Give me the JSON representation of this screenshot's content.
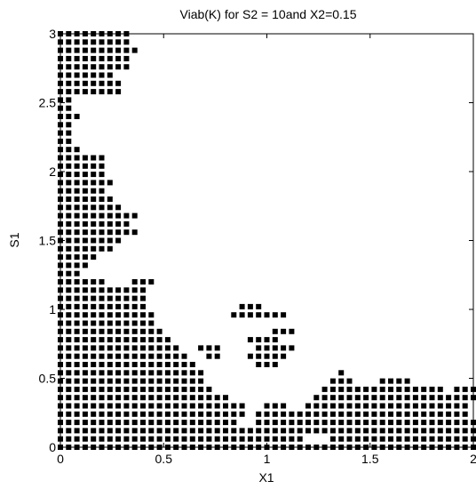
{
  "chart_data": {
    "type": "scatter",
    "title": "Viab(K) for S2 = 10and X2=0.15",
    "xlabel": "X1",
    "ylabel": "S1",
    "xlim": [
      0,
      2
    ],
    "ylim": [
      0,
      3
    ],
    "grid": false,
    "marker": "square",
    "marker_color": "#000000",
    "x_ticks": [
      {
        "value": 0,
        "label": "0"
      },
      {
        "value": 0.5,
        "label": "0.5"
      },
      {
        "value": 1,
        "label": "1"
      },
      {
        "value": 1.5,
        "label": "1.5"
      },
      {
        "value": 2,
        "label": "2"
      }
    ],
    "y_ticks": [
      {
        "value": 0,
        "label": "0"
      },
      {
        "value": 0.5,
        "label": "0.5"
      },
      {
        "value": 1,
        "label": "1"
      },
      {
        "value": 1.5,
        "label": "1.5"
      },
      {
        "value": 2,
        "label": "2"
      },
      {
        "value": 2.5,
        "label": "2.5"
      },
      {
        "value": 3,
        "label": "3"
      }
    ],
    "grid_step": {
      "x": 0.04,
      "y": 0.06
    },
    "rows": [
      {
        "y": 0.0,
        "x_ranges": [
          [
            0,
            2.0
          ]
        ]
      },
      {
        "y": 0.06,
        "x_ranges": [
          [
            0,
            1.16
          ],
          [
            1.32,
            2.0
          ]
        ]
      },
      {
        "y": 0.12,
        "x_ranges": [
          [
            0,
            1.2
          ],
          [
            1.24,
            2.0
          ]
        ]
      },
      {
        "y": 0.18,
        "x_ranges": [
          [
            0,
            0.84
          ],
          [
            0.96,
            2.0
          ]
        ]
      },
      {
        "y": 0.24,
        "x_ranges": [
          [
            0,
            0.88
          ],
          [
            0.96,
            1.96
          ]
        ]
      },
      {
        "y": 0.3,
        "x_ranges": [
          [
            0,
            0.88
          ],
          [
            1.0,
            1.08
          ],
          [
            1.2,
            1.96
          ]
        ]
      },
      {
        "y": 0.36,
        "x_ranges": [
          [
            0,
            0.8
          ],
          [
            1.24,
            1.84
          ],
          [
            1.88,
            2.0
          ]
        ]
      },
      {
        "y": 0.42,
        "x_ranges": [
          [
            0,
            0.72
          ],
          [
            1.28,
            1.84
          ],
          [
            1.92,
            2.0
          ]
        ]
      },
      {
        "y": 0.48,
        "x_ranges": [
          [
            0,
            0.68
          ],
          [
            1.32,
            1.4
          ],
          [
            1.56,
            1.68
          ]
        ]
      },
      {
        "y": 0.54,
        "x_ranges": [
          [
            0,
            0.68
          ],
          [
            1.36,
            1.36
          ]
        ]
      },
      {
        "y": 0.6,
        "x_ranges": [
          [
            0,
            0.64
          ],
          [
            0.96,
            1.04
          ]
        ]
      },
      {
        "y": 0.66,
        "x_ranges": [
          [
            0,
            0.6
          ],
          [
            0.72,
            0.76
          ],
          [
            0.92,
            1.08
          ]
        ]
      },
      {
        "y": 0.72,
        "x_ranges": [
          [
            0,
            0.56
          ],
          [
            0.68,
            0.76
          ],
          [
            0.96,
            1.12
          ]
        ]
      },
      {
        "y": 0.78,
        "x_ranges": [
          [
            0,
            0.52
          ],
          [
            0.92,
            1.04
          ]
        ]
      },
      {
        "y": 0.84,
        "x_ranges": [
          [
            0,
            0.48
          ],
          [
            1.04,
            1.12
          ]
        ]
      },
      {
        "y": 0.9,
        "x_ranges": [
          [
            0,
            0.44
          ]
        ]
      },
      {
        "y": 0.96,
        "x_ranges": [
          [
            0,
            0.44
          ],
          [
            0.84,
            1.08
          ]
        ]
      },
      {
        "y": 1.02,
        "x_ranges": [
          [
            0,
            0.4
          ],
          [
            0.88,
            0.96
          ]
        ]
      },
      {
        "y": 1.08,
        "x_ranges": [
          [
            0,
            0.4
          ]
        ]
      },
      {
        "y": 1.14,
        "x_ranges": [
          [
            0,
            0.4
          ]
        ]
      },
      {
        "y": 1.2,
        "x_ranges": [
          [
            0,
            0.2
          ],
          [
            0.36,
            0.44
          ]
        ]
      },
      {
        "y": 1.26,
        "x_ranges": [
          [
            0,
            0.08
          ]
        ]
      },
      {
        "y": 1.32,
        "x_ranges": [
          [
            0,
            0.12
          ]
        ]
      },
      {
        "y": 1.38,
        "x_ranges": [
          [
            0,
            0.16
          ]
        ]
      },
      {
        "y": 1.44,
        "x_ranges": [
          [
            0,
            0.24
          ]
        ]
      },
      {
        "y": 1.5,
        "x_ranges": [
          [
            0,
            0.28
          ]
        ]
      },
      {
        "y": 1.56,
        "x_ranges": [
          [
            0,
            0.36
          ]
        ]
      },
      {
        "y": 1.62,
        "x_ranges": [
          [
            0,
            0.32
          ]
        ]
      },
      {
        "y": 1.68,
        "x_ranges": [
          [
            0,
            0.36
          ]
        ]
      },
      {
        "y": 1.74,
        "x_ranges": [
          [
            0,
            0.28
          ]
        ]
      },
      {
        "y": 1.8,
        "x_ranges": [
          [
            0,
            0.24
          ]
        ]
      },
      {
        "y": 1.86,
        "x_ranges": [
          [
            0,
            0.2
          ]
        ]
      },
      {
        "y": 1.92,
        "x_ranges": [
          [
            0,
            0.24
          ]
        ]
      },
      {
        "y": 1.98,
        "x_ranges": [
          [
            0,
            0.2
          ]
        ]
      },
      {
        "y": 2.04,
        "x_ranges": [
          [
            0,
            0.2
          ]
        ]
      },
      {
        "y": 2.1,
        "x_ranges": [
          [
            0,
            0.2
          ]
        ]
      },
      {
        "y": 2.16,
        "x_ranges": [
          [
            0,
            0.08
          ]
        ]
      },
      {
        "y": 2.22,
        "x_ranges": [
          [
            0,
            0.04
          ]
        ]
      },
      {
        "y": 2.28,
        "x_ranges": [
          [
            0,
            0.04
          ]
        ]
      },
      {
        "y": 2.34,
        "x_ranges": [
          [
            0,
            0.04
          ]
        ]
      },
      {
        "y": 2.4,
        "x_ranges": [
          [
            0,
            0.08
          ]
        ]
      },
      {
        "y": 2.46,
        "x_ranges": [
          [
            0,
            0.04
          ]
        ]
      },
      {
        "y": 2.52,
        "x_ranges": [
          [
            0,
            0.04
          ]
        ]
      },
      {
        "y": 2.58,
        "x_ranges": [
          [
            0,
            0.28
          ]
        ]
      },
      {
        "y": 2.64,
        "x_ranges": [
          [
            0,
            0.28
          ]
        ]
      },
      {
        "y": 2.7,
        "x_ranges": [
          [
            0,
            0.24
          ]
        ]
      },
      {
        "y": 2.76,
        "x_ranges": [
          [
            0,
            0.32
          ]
        ]
      },
      {
        "y": 2.82,
        "x_ranges": [
          [
            0,
            0.32
          ]
        ]
      },
      {
        "y": 2.88,
        "x_ranges": [
          [
            0,
            0.36
          ]
        ]
      },
      {
        "y": 2.94,
        "x_ranges": [
          [
            0,
            0.32
          ]
        ]
      },
      {
        "y": 3.0,
        "x_ranges": [
          [
            0,
            0.32
          ]
        ]
      }
    ]
  }
}
